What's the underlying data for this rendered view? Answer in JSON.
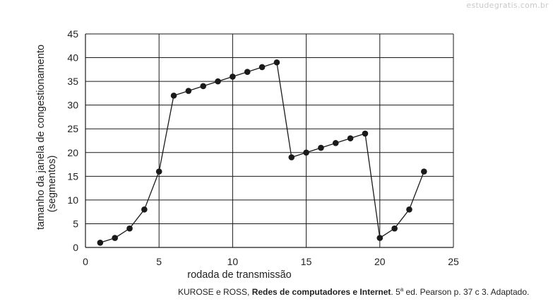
{
  "watermark": "estudegratis.com.br",
  "chart_data": {
    "type": "line",
    "xlabel": "rodada de transmissão",
    "ylabel_lines": [
      "tamanho da janela de congestionamento",
      "(segmentos)"
    ],
    "xlim": [
      0,
      25
    ],
    "ylim": [
      0,
      45
    ],
    "xticks": [
      0,
      5,
      10,
      15,
      20,
      25
    ],
    "yticks": [
      0,
      5,
      10,
      15,
      20,
      25,
      30,
      35,
      40,
      45
    ],
    "grid": true,
    "series": [
      {
        "x": [
          1,
          2,
          3,
          4,
          5,
          6,
          7,
          8,
          9,
          10,
          11,
          12,
          13,
          14,
          15,
          16,
          17,
          18,
          19,
          20,
          21,
          22,
          23
        ],
        "values": [
          1,
          2,
          4,
          8,
          16,
          32,
          33,
          34,
          35,
          36,
          37,
          38,
          39,
          19,
          20,
          21,
          22,
          23,
          24,
          2,
          4,
          8,
          16
        ]
      }
    ],
    "color": "#1a1a1a"
  },
  "source": {
    "prefix": "KUROSE e ROSS, ",
    "title": "Redes de computadores e Internet",
    "edition_num": ". 5",
    "edition_sup": "a",
    "suffix": " ed. Pearson p. 37 c 3. Adaptado."
  }
}
